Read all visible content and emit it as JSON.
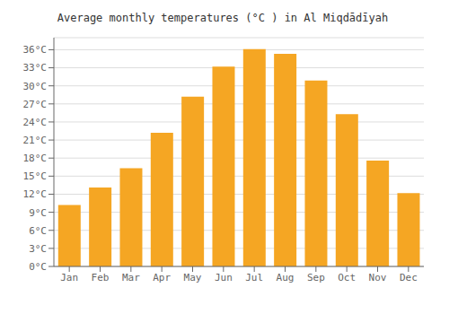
{
  "chart_data": {
    "type": "bar",
    "title": "Average monthly temperatures (°C ) in Al Miqdādīyah",
    "categories": [
      "Jan",
      "Feb",
      "Mar",
      "Apr",
      "May",
      "Jun",
      "Jul",
      "Aug",
      "Sep",
      "Oct",
      "Nov",
      "Dec"
    ],
    "values": [
      10.2,
      13.1,
      16.3,
      22.2,
      28.2,
      33.2,
      36.1,
      35.3,
      30.9,
      25.3,
      17.6,
      12.2
    ],
    "color": "#F5A623",
    "ylim": [
      0,
      38
    ],
    "yticks": [
      {
        "value": 0,
        "label": "0°C"
      },
      {
        "value": 3,
        "label": "3°C"
      },
      {
        "value": 6,
        "label": "6°C"
      },
      {
        "value": 9,
        "label": "9°C"
      },
      {
        "value": 12,
        "label": "12°C"
      },
      {
        "value": 15,
        "label": "15°C"
      },
      {
        "value": 18,
        "label": "18°C"
      },
      {
        "value": 21,
        "label": "21°C"
      },
      {
        "value": 24,
        "label": "24°C"
      },
      {
        "value": 27,
        "label": "27°C"
      },
      {
        "value": 30,
        "label": "30°C"
      },
      {
        "value": 33,
        "label": "33°C"
      },
      {
        "value": 36,
        "label": "36°C"
      }
    ],
    "grid": true
  }
}
